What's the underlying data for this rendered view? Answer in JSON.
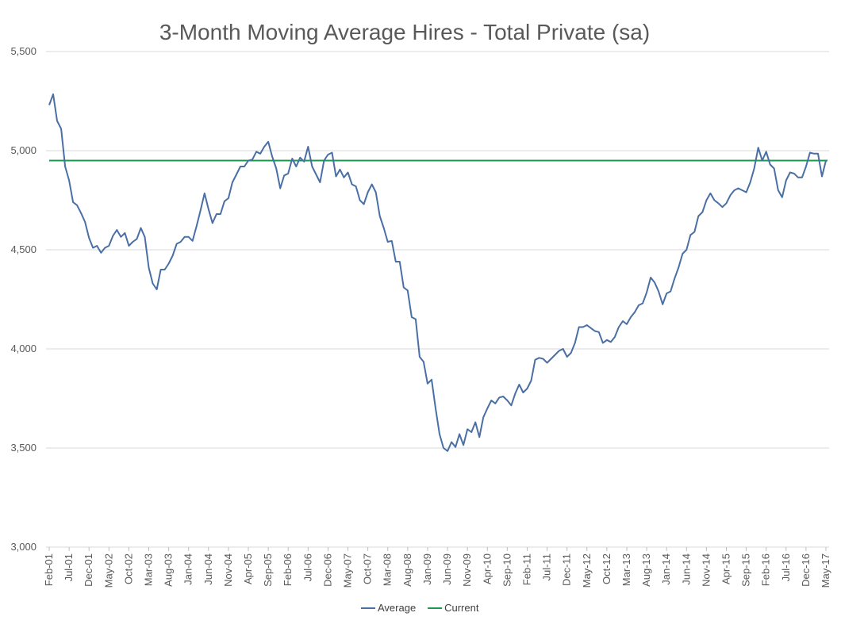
{
  "chart_data": {
    "type": "line",
    "title": "3-Month Moving Average Hires - Total Private (sa)",
    "xlabel": "",
    "ylabel": "",
    "ylim": [
      3000,
      5500
    ],
    "y_ticks": [
      "3,000",
      "3,500",
      "4,000",
      "4,500",
      "5,000",
      "5,500"
    ],
    "y_tick_values": [
      3000,
      3500,
      4000,
      4500,
      5000,
      5500
    ],
    "x_start": "Feb-01",
    "x_end": "May-17",
    "x_tick_labels": [
      "Feb-01",
      "Jul-01",
      "Dec-01",
      "May-02",
      "Oct-02",
      "Mar-03",
      "Aug-03",
      "Jan-04",
      "Jun-04",
      "Nov-04",
      "Apr-05",
      "Sep-05",
      "Feb-06",
      "Jul-06",
      "Dec-06",
      "May-07",
      "Oct-07",
      "Mar-08",
      "Aug-08",
      "Jan-09",
      "Jun-09",
      "Nov-09",
      "Apr-10",
      "Sep-10",
      "Feb-11",
      "Jul-11",
      "Dec-11",
      "May-12",
      "Oct-12",
      "Mar-13",
      "Aug-13",
      "Jan-14",
      "Jun-14",
      "Nov-14",
      "Apr-15",
      "Sep-15",
      "Feb-16",
      "Jul-16",
      "Dec-16",
      "May-17"
    ],
    "grid": true,
    "legend_position": "bottom",
    "series": [
      {
        "name": "Average",
        "color": "#4a6fa5",
        "values": [
          5230,
          5285,
          5150,
          5110,
          4920,
          4850,
          4740,
          4725,
          4685,
          4640,
          4560,
          4510,
          4520,
          4485,
          4510,
          4520,
          4570,
          4600,
          4565,
          4585,
          4520,
          4540,
          4555,
          4610,
          4565,
          4410,
          4330,
          4300,
          4400,
          4400,
          4430,
          4470,
          4530,
          4540,
          4565,
          4565,
          4545,
          4620,
          4700,
          4785,
          4705,
          4635,
          4680,
          4680,
          4745,
          4760,
          4840,
          4880,
          4920,
          4920,
          4950,
          4955,
          4995,
          4985,
          5020,
          5045,
          4970,
          4910,
          4810,
          4875,
          4885,
          4960,
          4920,
          4965,
          4945,
          5020,
          4920,
          4880,
          4840,
          4950,
          4980,
          4990,
          4870,
          4905,
          4865,
          4890,
          4830,
          4820,
          4750,
          4730,
          4790,
          4830,
          4790,
          4670,
          4610,
          4540,
          4545,
          4440,
          4440,
          4310,
          4295,
          4160,
          4150,
          3960,
          3935,
          3825,
          3845,
          3700,
          3570,
          3500,
          3485,
          3530,
          3505,
          3570,
          3515,
          3595,
          3580,
          3630,
          3555,
          3655,
          3700,
          3740,
          3725,
          3755,
          3760,
          3740,
          3715,
          3775,
          3820,
          3780,
          3800,
          3840,
          3945,
          3955,
          3950,
          3930,
          3950,
          3970,
          3990,
          4000,
          3960,
          3980,
          4030,
          4110,
          4110,
          4120,
          4105,
          4090,
          4085,
          4030,
          4045,
          4035,
          4060,
          4110,
          4140,
          4125,
          4160,
          4185,
          4220,
          4230,
          4285,
          4360,
          4335,
          4290,
          4225,
          4280,
          4290,
          4355,
          4410,
          4480,
          4500,
          4575,
          4590,
          4670,
          4690,
          4750,
          4785,
          4750,
          4735,
          4715,
          4735,
          4775,
          4800,
          4810,
          4800,
          4790,
          4840,
          4910,
          5015,
          4950,
          4995,
          4930,
          4910,
          4800,
          4765,
          4850,
          4890,
          4885,
          4865,
          4865,
          4920,
          4990,
          4985,
          4985,
          4870,
          4950
        ]
      },
      {
        "name": "Current",
        "color": "#1a9850",
        "values": [
          4950,
          4950
        ]
      }
    ]
  }
}
